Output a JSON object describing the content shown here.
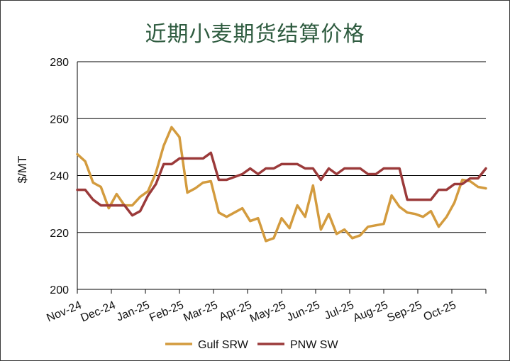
{
  "chart_data": {
    "type": "line",
    "title": "近期小麦期货结算价格",
    "ylabel": "$/MT",
    "xlabel": "",
    "ylim": [
      200,
      280
    ],
    "y_ticks": [
      200,
      220,
      240,
      260,
      280
    ],
    "x_ticks": [
      "Nov-24",
      "Dec-24",
      "Jan-25",
      "Feb-25",
      "Mar-25",
      "Apr-25",
      "May-25",
      "Jun-25",
      "Jul-25",
      "Aug-25",
      "Sep-25",
      "Oct-25"
    ],
    "grid": "horizontal",
    "legend_position": "bottom",
    "series": [
      {
        "name": "Gulf SRW",
        "color": "#D39B3E",
        "values": [
          247.5,
          245,
          237.5,
          236,
          228.5,
          233.5,
          229.5,
          229.5,
          232.5,
          234.5,
          241,
          250.5,
          257,
          253.5,
          234,
          235.5,
          237.5,
          238,
          227,
          225.5,
          227,
          228.5,
          224,
          225,
          217,
          218,
          225,
          221.5,
          229.5,
          225.5,
          236.5,
          221,
          226.5,
          219.5,
          221,
          218,
          219,
          222,
          222.5,
          223,
          233,
          229,
          227,
          226.5,
          225.5,
          227.5,
          222,
          225.5,
          230.5,
          238.5,
          238,
          236,
          235.5
        ]
      },
      {
        "name": "PNW SW",
        "color": "#9B3A3A",
        "values": [
          235,
          235,
          231.5,
          229.5,
          229.5,
          229.5,
          229.5,
          226,
          227.5,
          233,
          237,
          244,
          244,
          246,
          246,
          246,
          246,
          248,
          238.5,
          238.5,
          239.5,
          240.5,
          242.5,
          240.5,
          242.5,
          242.5,
          244,
          244,
          244,
          242.5,
          242.5,
          238.5,
          242.5,
          240.5,
          242.5,
          242.5,
          242.5,
          240.5,
          240.5,
          242.5,
          242.5,
          242.5,
          231.5,
          231.5,
          231.5,
          231.5,
          235,
          235,
          237,
          237,
          239,
          239,
          242.5
        ]
      }
    ]
  }
}
